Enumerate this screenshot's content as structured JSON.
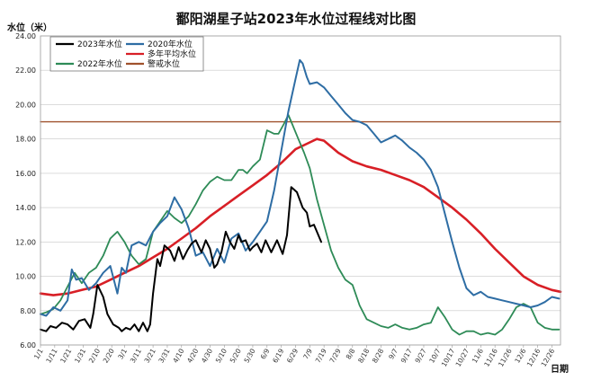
{
  "chart_data": {
    "type": "line",
    "title": "鄱阳湖星子站2023年水位过程线对比图",
    "ylabel": "水位（米）",
    "xlabel": "日期",
    "ylim": [
      6.0,
      24.0
    ],
    "xlim_day": [
      1,
      366
    ],
    "y_ticks": [
      "6.00",
      "8.00",
      "10.00",
      "12.00",
      "14.00",
      "16.00",
      "18.00",
      "20.00",
      "22.00",
      "24.00"
    ],
    "y_tick_values": [
      6,
      8,
      10,
      12,
      14,
      16,
      18,
      20,
      22,
      24
    ],
    "x_ticks": [
      "1/1",
      "1/11",
      "1/21",
      "1/31",
      "2/10",
      "2/20",
      "3/1",
      "3/11",
      "3/21",
      "3/31",
      "4/10",
      "4/20",
      "4/30",
      "5/10",
      "5/20",
      "5/30",
      "6/9",
      "6/19",
      "6/29",
      "7/9",
      "7/19",
      "7/29",
      "8/8",
      "8/18",
      "8/28",
      "9/7",
      "9/17",
      "9/27",
      "10/7",
      "10/17",
      "10/27",
      "11/6",
      "11/16",
      "11/26",
      "12/6",
      "12/16",
      "12/26"
    ],
    "x_tick_days": [
      1,
      11,
      21,
      31,
      41,
      51,
      60,
      70,
      80,
      90,
      100,
      110,
      120,
      130,
      140,
      150,
      160,
      170,
      180,
      190,
      200,
      210,
      220,
      230,
      240,
      250,
      260,
      270,
      280,
      290,
      300,
      310,
      320,
      330,
      340,
      350,
      360
    ],
    "legend": [
      "2023年水位",
      "2020年水位",
      "多年平均水位",
      "警戒水位",
      "2022年水位"
    ],
    "series": [
      {
        "name": "2023年水位",
        "color": "#000000",
        "x": [
          1,
          5,
          8,
          12,
          16,
          20,
          24,
          28,
          32,
          36,
          38,
          41,
          45,
          48,
          52,
          56,
          58,
          61,
          64,
          67,
          70,
          73,
          76,
          78,
          80,
          83,
          85,
          88,
          92,
          95,
          98,
          101,
          104,
          107,
          110,
          114,
          117,
          120,
          123,
          125,
          128,
          131,
          134,
          137,
          140,
          142,
          145,
          148,
          150,
          153,
          156,
          159,
          163,
          167,
          171,
          174,
          177,
          181,
          185,
          188,
          190,
          193,
          198
        ],
        "y": [
          6.9,
          6.8,
          7.1,
          7.0,
          7.3,
          7.2,
          6.9,
          7.4,
          7.5,
          7.0,
          7.8,
          9.5,
          8.8,
          7.8,
          7.2,
          7.0,
          6.8,
          7.0,
          6.9,
          7.2,
          6.8,
          7.3,
          6.8,
          7.2,
          9.0,
          11.0,
          10.6,
          11.8,
          11.5,
          10.9,
          11.7,
          11.0,
          11.5,
          11.9,
          12.1,
          11.4,
          12.1,
          11.6,
          10.5,
          10.7,
          11.4,
          12.6,
          12.0,
          11.6,
          12.4,
          12.0,
          12.1,
          11.5,
          11.7,
          11.9,
          11.4,
          12.1,
          11.4,
          12.1,
          11.3,
          12.4,
          15.2,
          14.9,
          14.0,
          13.7,
          12.9,
          13.0,
          12.0
        ]
      },
      {
        "name": "2020年水位",
        "color": "#2e6da4",
        "x": [
          1,
          5,
          10,
          15,
          20,
          23,
          26,
          30,
          35,
          40,
          45,
          50,
          55,
          58,
          61,
          65,
          70,
          75,
          80,
          85,
          90,
          95,
          100,
          105,
          110,
          115,
          120,
          125,
          130,
          135,
          140,
          145,
          150,
          155,
          160,
          165,
          170,
          175,
          180,
          183,
          185,
          188,
          190,
          195,
          200,
          205,
          210,
          215,
          220,
          225,
          230,
          235,
          240,
          245,
          250,
          255,
          260,
          265,
          270,
          275,
          280,
          285,
          290,
          295,
          300,
          305,
          310,
          315,
          320,
          325,
          330,
          335,
          340,
          345,
          350,
          355,
          360,
          365
        ],
        "y": [
          7.8,
          7.7,
          8.2,
          8.0,
          8.6,
          10.4,
          9.8,
          9.9,
          9.2,
          9.6,
          10.2,
          10.6,
          9.0,
          10.5,
          10.2,
          11.8,
          12.0,
          11.8,
          12.6,
          13.1,
          13.5,
          14.6,
          13.9,
          12.8,
          11.2,
          11.4,
          10.6,
          11.6,
          10.8,
          12.2,
          12.5,
          11.5,
          12.0,
          12.6,
          13.2,
          15.0,
          17.3,
          19.6,
          21.5,
          22.6,
          22.4,
          21.6,
          21.2,
          21.3,
          21.0,
          20.5,
          20.0,
          19.5,
          19.1,
          19.0,
          18.8,
          18.3,
          17.8,
          18.0,
          18.2,
          17.9,
          17.5,
          17.2,
          16.8,
          16.2,
          15.2,
          13.6,
          12.0,
          10.5,
          9.3,
          8.9,
          9.1,
          8.8,
          8.7,
          8.6,
          8.5,
          8.4,
          8.3,
          8.2,
          8.3,
          8.5,
          8.8,
          8.7
        ]
      },
      {
        "name": "多年平均水位",
        "color": "#d81f26",
        "x": [
          1,
          10,
          20,
          30,
          40,
          50,
          60,
          70,
          80,
          90,
          100,
          110,
          120,
          130,
          140,
          150,
          160,
          170,
          180,
          190,
          195,
          200,
          210,
          220,
          230,
          240,
          250,
          260,
          270,
          280,
          290,
          300,
          310,
          320,
          330,
          340,
          350,
          360,
          366
        ],
        "y": [
          9.0,
          8.9,
          9.0,
          9.2,
          9.4,
          9.8,
          10.2,
          10.6,
          11.1,
          11.6,
          12.2,
          12.8,
          13.5,
          14.1,
          14.7,
          15.3,
          15.9,
          16.6,
          17.4,
          17.8,
          18.0,
          17.9,
          17.2,
          16.7,
          16.4,
          16.2,
          15.9,
          15.6,
          15.2,
          14.6,
          14.0,
          13.3,
          12.5,
          11.6,
          10.8,
          10.0,
          9.5,
          9.2,
          9.1
        ]
      },
      {
        "name": "警戒水位",
        "color": "#a0522d",
        "x": [
          1,
          366
        ],
        "y": [
          19.0,
          19.0
        ]
      },
      {
        "name": "2022年水位",
        "color": "#2e8b57",
        "x": [
          1,
          5,
          10,
          15,
          20,
          25,
          30,
          35,
          40,
          45,
          50,
          55,
          60,
          65,
          70,
          75,
          80,
          85,
          90,
          95,
          100,
          105,
          110,
          115,
          120,
          125,
          130,
          135,
          140,
          143,
          146,
          150,
          155,
          160,
          165,
          168,
          172,
          175,
          178,
          182,
          186,
          190,
          195,
          200,
          205,
          210,
          215,
          220,
          225,
          230,
          235,
          240,
          245,
          250,
          255,
          260,
          265,
          270,
          275,
          280,
          285,
          290,
          295,
          300,
          305,
          310,
          315,
          320,
          325,
          330,
          335,
          340,
          345,
          350,
          355,
          360,
          365
        ],
        "y": [
          7.8,
          7.9,
          8.1,
          8.6,
          9.4,
          10.2,
          9.6,
          10.2,
          10.5,
          11.2,
          12.2,
          12.6,
          12.0,
          11.2,
          10.7,
          11.0,
          12.6,
          13.2,
          13.8,
          13.4,
          13.1,
          13.5,
          14.2,
          15.0,
          15.5,
          15.8,
          15.6,
          15.6,
          16.2,
          16.2,
          16.0,
          16.4,
          16.8,
          18.5,
          18.3,
          18.3,
          18.9,
          19.4,
          18.8,
          18.0,
          17.2,
          16.3,
          14.5,
          13.0,
          11.5,
          10.5,
          9.8,
          9.5,
          8.3,
          7.5,
          7.3,
          7.1,
          7.0,
          7.2,
          7.0,
          6.9,
          7.0,
          7.2,
          7.3,
          8.2,
          7.6,
          6.9,
          6.6,
          6.8,
          6.8,
          6.6,
          6.7,
          6.6,
          6.9,
          7.5,
          8.2,
          8.4,
          8.2,
          7.3,
          7.0,
          6.9,
          6.9
        ]
      }
    ]
  }
}
